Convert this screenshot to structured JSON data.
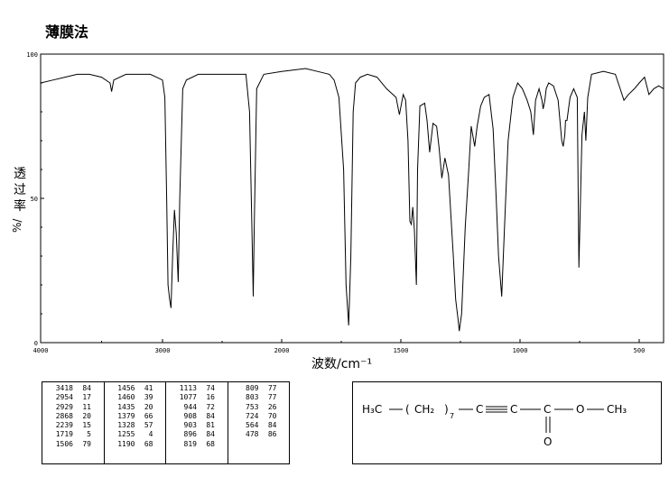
{
  "title": "薄膜法",
  "chart_data": {
    "type": "line",
    "title": "薄膜法",
    "xlabel": "波数/cm⁻¹",
    "ylabel": "透过率",
    "ylabel_unit": "%/",
    "x_range": [
      4000,
      400
    ],
    "y_range": [
      0,
      100
    ],
    "x_ticks": [
      4000,
      3000,
      2000,
      1500,
      1000,
      500
    ],
    "y_ticks": [
      0,
      50,
      100
    ],
    "series": [
      {
        "x": [
          4000,
          3900,
          3800,
          3700,
          3600,
          3500,
          3430,
          3418,
          3400,
          3300,
          3200,
          3100,
          3050,
          3000,
          2980,
          2965,
          2954,
          2940,
          2929,
          2915,
          2900,
          2885,
          2868,
          2855,
          2830,
          2800,
          2700,
          2600,
          2500,
          2400,
          2300,
          2270,
          2250,
          2239,
          2230,
          2210,
          2150,
          2000,
          1900,
          1850,
          1800,
          1780,
          1760,
          1740,
          1730,
          1719,
          1710,
          1700,
          1690,
          1670,
          1640,
          1600,
          1560,
          1520,
          1506,
          1490,
          1480,
          1470,
          1462,
          1456,
          1450,
          1443,
          1435,
          1430,
          1420,
          1400,
          1390,
          1379,
          1365,
          1350,
          1340,
          1328,
          1315,
          1300,
          1280,
          1270,
          1260,
          1255,
          1245,
          1230,
          1215,
          1205,
          1190,
          1180,
          1165,
          1150,
          1130,
          1113,
          1100,
          1090,
          1077,
          1065,
          1050,
          1030,
          1010,
          990,
          970,
          955,
          944,
          935,
          920,
          908,
          903,
          896,
          890,
          880,
          860,
          840,
          825,
          819,
          812,
          809,
          803,
          790,
          775,
          760,
          753,
          740,
          730,
          724,
          716,
          700,
          650,
          600,
          580,
          564,
          545,
          520,
          500,
          478,
          460,
          440,
          420,
          400
        ],
        "y": [
          90,
          91,
          92,
          93,
          93,
          92,
          90,
          87,
          91,
          93,
          93,
          93,
          92,
          91,
          85,
          50,
          20,
          15,
          12,
          30,
          46,
          38,
          21,
          50,
          88,
          91,
          93,
          93,
          93,
          93,
          93,
          80,
          40,
          16,
          40,
          88,
          93,
          94,
          95,
          94,
          93,
          91,
          85,
          60,
          20,
          6,
          30,
          80,
          90,
          92,
          93,
          92,
          88,
          85,
          79,
          86,
          84,
          70,
          42,
          41,
          47,
          39,
          20,
          60,
          82,
          83,
          77,
          66,
          76,
          75,
          68,
          57,
          64,
          58,
          30,
          15,
          8,
          4,
          10,
          40,
          60,
          75,
          68,
          75,
          82,
          85,
          86,
          74,
          50,
          30,
          16,
          40,
          70,
          85,
          90,
          88,
          84,
          80,
          72,
          84,
          88,
          84,
          81,
          84,
          88,
          90,
          89,
          84,
          70,
          68,
          72,
          77,
          77,
          85,
          88,
          85,
          26,
          72,
          80,
          70,
          85,
          93,
          94,
          93,
          88,
          84,
          86,
          88,
          90,
          92,
          86,
          88,
          89,
          88
        ]
      }
    ],
    "peak_table": [
      [
        [
          "3418",
          "84"
        ],
        [
          "2954",
          "17"
        ],
        [
          "2929",
          "11"
        ],
        [
          "2868",
          "20"
        ],
        [
          "2239",
          "15"
        ],
        [
          "1719",
          "5"
        ],
        [
          "1506",
          "79"
        ]
      ],
      [
        [
          "1456",
          "41"
        ],
        [
          "1460",
          "39"
        ],
        [
          "1435",
          "20"
        ],
        [
          "1379",
          "66"
        ],
        [
          "1328",
          "57"
        ],
        [
          "1255",
          "4"
        ],
        [
          "1190",
          "68"
        ]
      ],
      [
        [
          "1113",
          "74"
        ],
        [
          "1077",
          "16"
        ],
        [
          "944",
          "72"
        ],
        [
          "908",
          "84"
        ],
        [
          "903",
          "81"
        ],
        [
          "896",
          "84"
        ],
        [
          "819",
          "68"
        ]
      ],
      [
        [
          "809",
          "77"
        ],
        [
          "803",
          "77"
        ],
        [
          "753",
          "26"
        ],
        [
          "724",
          "70"
        ],
        [
          "564",
          "84"
        ],
        [
          "478",
          "86"
        ]
      ]
    ],
    "structure": {
      "h3c": "H₃C",
      "ch2_open": "(",
      "ch2": "CH₂",
      "ch2_close": ")",
      "subscript_n": "7",
      "c1": "C",
      "c2": "C",
      "c3": "C",
      "o_carbonyl": "O",
      "o_ester": "O",
      "ch3": "CH₃"
    }
  }
}
